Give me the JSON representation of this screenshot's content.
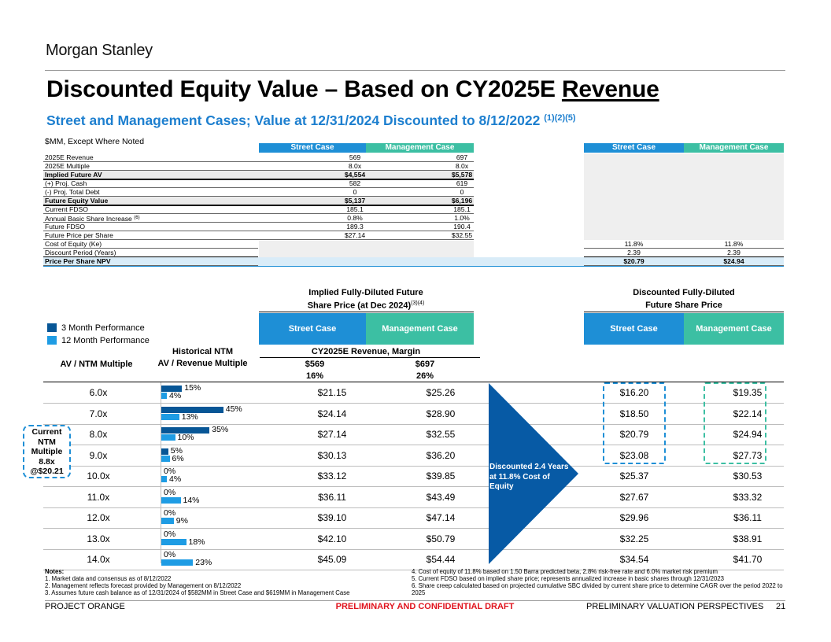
{
  "header": {
    "logo": "Morgan Stanley",
    "title_prefix": "Discounted Equity Value – Based on CY2025E",
    "title_emph": "Revenue",
    "subtitle": "Street and Management Cases; Value at 12/31/2024 Discounted to 8/12/2022",
    "subtitle_sup": "(1)(2)(5)",
    "units": "$MM, Except Where Noted"
  },
  "top_table": {
    "left_headers": [
      "Street Case",
      "Management Case"
    ],
    "right_headers": [
      "Street Case",
      "Management Case"
    ],
    "rows": [
      {
        "label": "2025E Revenue",
        "street": "569",
        "mgmt": "697"
      },
      {
        "label": "2025E Multiple",
        "street": "8.0x",
        "mgmt": "8.0x"
      },
      {
        "label": "Implied Future AV",
        "street": "$4,554",
        "mgmt": "$5,578"
      },
      {
        "label": "(+) Proj. Cash",
        "street": "582",
        "mgmt": "619"
      },
      {
        "label": "(-) Proj. Total Debt",
        "street": "0",
        "mgmt": "0"
      },
      {
        "label": "Future Equity Value",
        "street": "$5,137",
        "mgmt": "$6,196"
      },
      {
        "label": "Current FDSO",
        "street": "185.1",
        "mgmt": "185.1"
      },
      {
        "label": "Annual Basic Share Increase",
        "label_sup": "(6)",
        "street": "0.8%",
        "mgmt": "1.0%"
      },
      {
        "label": "Future FDSO",
        "street": "189.3",
        "mgmt": "190.4"
      },
      {
        "label": "Future Price per Share",
        "street": "$27.14",
        "mgmt": "$32.55"
      }
    ],
    "right_rows": [
      {
        "label": "Cost of Equity (Ke)",
        "street": "11.8%",
        "mgmt": "11.8%"
      },
      {
        "label": "Discount Period (Years)",
        "street": "2.39",
        "mgmt": "2.39"
      },
      {
        "label": "Price Per Share NPV",
        "street": "$20.79",
        "mgmt": "$24.94"
      }
    ]
  },
  "sensitivity": {
    "left_head_line1": "Implied Fully-Diluted Future",
    "left_head_line2": "Share Price (at Dec 2024)",
    "left_head_sup": "(3)(4)",
    "right_head_line1": "Discounted Fully-Diluted",
    "right_head_line2": "Future Share Price",
    "case_street": "Street Case",
    "case_mgmt": "Management Case",
    "legend_3m": "3 Month Performance",
    "legend_12m": "12 Month Performance",
    "col_mult": "AV / NTM Multiple",
    "col_hist_1": "Historical NTM",
    "col_hist_2": "AV / Revenue Multiple",
    "rev_head": "CY2025E Revenue, Margin",
    "street_rev": "$569",
    "mgmt_rev": "$697",
    "street_margin": "16%",
    "mgmt_margin": "26%",
    "arrow_text": "Discounted 2.4 Years at 11.8% Cost of Equity",
    "current_label": "Current NTM Multiple 8.8x @$20.21",
    "rows": [
      {
        "mult": "6.0x",
        "perf3": 15,
        "perf12": 4,
        "perf3_label": "15%",
        "perf12_label": "4%",
        "street": "$21.15",
        "mgmt": "$25.26",
        "d_street": "$16.20",
        "d_mgmt": "$19.35"
      },
      {
        "mult": "7.0x",
        "perf3": 45,
        "perf12": 13,
        "perf3_label": "45%",
        "perf12_label": "13%",
        "street": "$24.14",
        "mgmt": "$28.90",
        "d_street": "$18.50",
        "d_mgmt": "$22.14"
      },
      {
        "mult": "8.0x",
        "perf3": 35,
        "perf12": 10,
        "perf3_label": "35%",
        "perf12_label": "10%",
        "street": "$27.14",
        "mgmt": "$32.55",
        "d_street": "$20.79",
        "d_mgmt": "$24.94"
      },
      {
        "mult": "9.0x",
        "perf3": 5,
        "perf12": 6,
        "perf3_label": "5%",
        "perf12_label": "6%",
        "street": "$30.13",
        "mgmt": "$36.20",
        "d_street": "$23.08",
        "d_mgmt": "$27.73"
      },
      {
        "mult": "10.0x",
        "perf3": 0,
        "perf12": 4,
        "perf3_label": "0%",
        "perf12_label": "4%",
        "street": "$33.12",
        "mgmt": "$39.85",
        "d_street": "$25.37",
        "d_mgmt": "$30.53"
      },
      {
        "mult": "11.0x",
        "perf3": 0,
        "perf12": 14,
        "perf3_label": "0%",
        "perf12_label": "14%",
        "street": "$36.11",
        "mgmt": "$43.49",
        "d_street": "$27.67",
        "d_mgmt": "$33.32"
      },
      {
        "mult": "12.0x",
        "perf3": 0,
        "perf12": 9,
        "perf3_label": "0%",
        "perf12_label": "9%",
        "street": "$39.10",
        "mgmt": "$47.14",
        "d_street": "$29.96",
        "d_mgmt": "$36.11"
      },
      {
        "mult": "13.0x",
        "perf3": 0,
        "perf12": 18,
        "perf3_label": "0%",
        "perf12_label": "18%",
        "street": "$42.10",
        "mgmt": "$50.79",
        "d_street": "$32.25",
        "d_mgmt": "$38.91"
      },
      {
        "mult": "14.0x",
        "perf3": 0,
        "perf12": 23,
        "perf3_label": "0%",
        "perf12_label": "23%",
        "street": "$45.09",
        "mgmt": "$54.44",
        "d_street": "$34.54",
        "d_mgmt": "$41.70"
      }
    ]
  },
  "notes": {
    "title": "Notes:",
    "left": [
      "1.  Market data and consensus as of 8/12/2022",
      "2.  Management reflects forecast provided by Management on 8/12/2022",
      "3.  Assumes future cash balance as of 12/31/2024 of $582MM in Street Case and $619MM in Management Case"
    ],
    "right": [
      "4.  Cost of equity of 11.8% based on 1.50 Barra predicted beta, 2.8% risk-free rate and 6.0% market risk premium",
      "5.  Current FDSO based on implied share price; represents annualized increase in basic shares through 12/31/2023",
      "6.  Share creep calculated based on projected cumulative SBC divided by current share price to determine CAGR over the period 2022 to 2025"
    ]
  },
  "footer": {
    "project": "PROJECT ORANGE",
    "draft": "PRELIMINARY AND CONFIDENTIAL DRAFT",
    "section": "PRELIMINARY VALUATION PERSPECTIVES",
    "page": "21"
  },
  "colors": {
    "street": "#1e8fd6",
    "mgmt": "#3cbfa3",
    "bar3": "#075696",
    "bar12": "#1e9ce4",
    "arrow": "#075aa5",
    "draft": "#e0141e"
  }
}
